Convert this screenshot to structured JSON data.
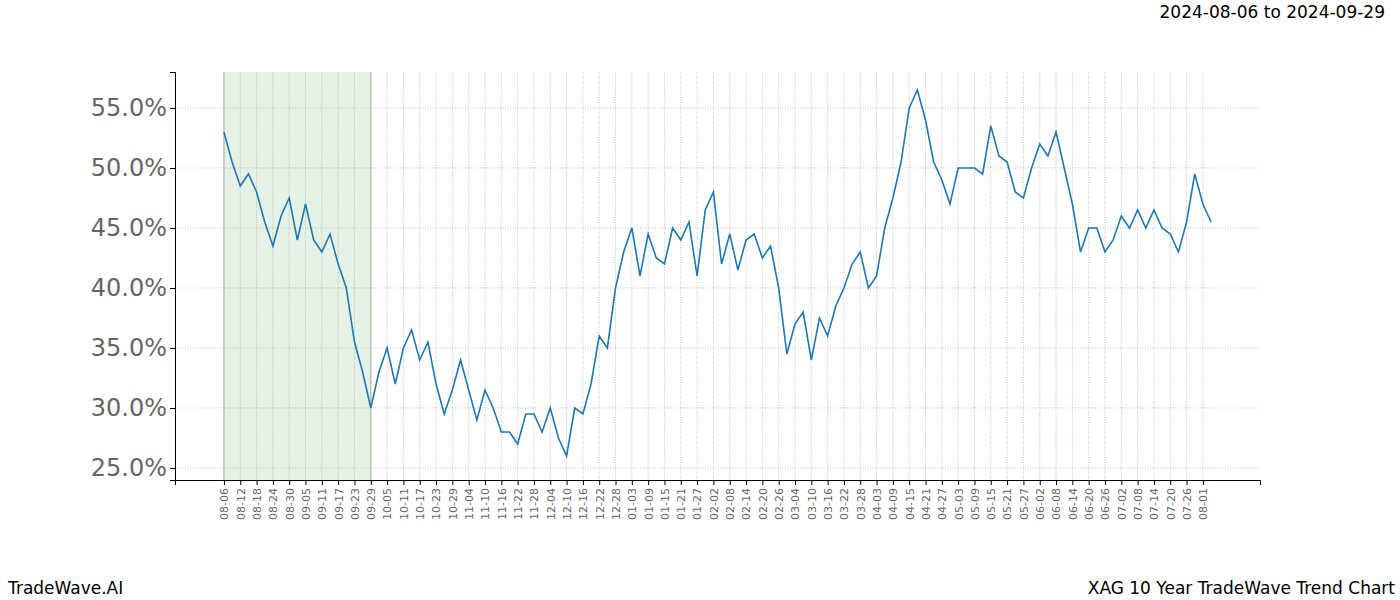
{
  "chart_data": {
    "type": "line",
    "title": "2024-08-06 to 2024-09-29",
    "source": "TradeWave.AI",
    "caption": "XAG 10 Year TradeWave Trend Chart",
    "categories": [
      "08-06",
      null,
      "08-12",
      null,
      "08-18",
      null,
      "08-24",
      null,
      "08-30",
      null,
      "09-05",
      null,
      "09-11",
      null,
      "09-17",
      null,
      "09-23",
      null,
      "09-29",
      null,
      "10-05",
      null,
      "10-11",
      null,
      "10-17",
      null,
      "10-23",
      null,
      "10-29",
      null,
      "11-04",
      null,
      "11-10",
      null,
      "11-16",
      null,
      "11-22",
      null,
      "11-28",
      null,
      "12-04",
      null,
      "12-10",
      null,
      "12-16",
      null,
      "12-22",
      null,
      "12-28",
      null,
      "01-03",
      null,
      "01-09",
      null,
      "01-15",
      null,
      "01-21",
      null,
      "01-27",
      null,
      "02-02",
      null,
      "02-08",
      null,
      "02-14",
      null,
      "02-20",
      null,
      "02-26",
      null,
      "03-04",
      null,
      "03-10",
      null,
      "03-16",
      null,
      "03-22",
      null,
      "03-28",
      null,
      "04-03",
      null,
      "04-09",
      null,
      "04-15",
      null,
      "04-21",
      null,
      "04-27",
      null,
      "05-03",
      null,
      "05-09",
      null,
      "05-15",
      null,
      "05-21",
      null,
      "05-27",
      null,
      "06-02",
      null,
      "06-08",
      null,
      "06-14",
      null,
      "06-20",
      null,
      "06-26",
      null,
      "07-02",
      null,
      "07-08",
      null,
      "07-14",
      null,
      "07-20",
      null,
      "07-26",
      null,
      "08-01",
      null
    ],
    "series": [
      {
        "name": "XAG",
        "color": "#1f77b4",
        "values": [
          53,
          50.5,
          48.5,
          49.5,
          48,
          45.5,
          43.5,
          46,
          47.5,
          44,
          47,
          44,
          43,
          44.5,
          42,
          40,
          35.5,
          33,
          30,
          33,
          35,
          32,
          35,
          36.5,
          34,
          35.5,
          32,
          29.5,
          31.5,
          34,
          31.5,
          29,
          31.5,
          30,
          28,
          28,
          27,
          29.5,
          29.5,
          28,
          30,
          27.5,
          26,
          30,
          29.5,
          32,
          36,
          35,
          40,
          43,
          45,
          41,
          44.5,
          42.5,
          42,
          45,
          44,
          45.5,
          41,
          46.5,
          48,
          42,
          44.5,
          41.5,
          44,
          44.5,
          42.5,
          43.5,
          40,
          34.5,
          37,
          38,
          34,
          37.5,
          36,
          38.5,
          40,
          42,
          43,
          40,
          41,
          45,
          47.5,
          50.5,
          55,
          56.5,
          54,
          50.5,
          49,
          47,
          50,
          50,
          50,
          49.5,
          53.5,
          51,
          50.5,
          48,
          47.5,
          50,
          52,
          51,
          53,
          50,
          47,
          43,
          45,
          45,
          43,
          44,
          46,
          45,
          46.5,
          45,
          46.5,
          45,
          44.5,
          43,
          45.5,
          49.5,
          47,
          45.5
        ]
      }
    ],
    "highlight": {
      "from": "08-06",
      "to": "09-29",
      "color": "#e6f2e6"
    },
    "ylim": [
      24,
      58
    ],
    "yticks": [
      {
        "value": 25,
        "label": "25.0%"
      },
      {
        "value": 30,
        "label": "30.0%"
      },
      {
        "value": 35,
        "label": "35.0%"
      },
      {
        "value": 40,
        "label": "40.0%"
      },
      {
        "value": 45,
        "label": "45.0%"
      },
      {
        "value": 50,
        "label": "50.0%"
      },
      {
        "value": 55,
        "label": "55.0%"
      }
    ],
    "grid": true
  }
}
